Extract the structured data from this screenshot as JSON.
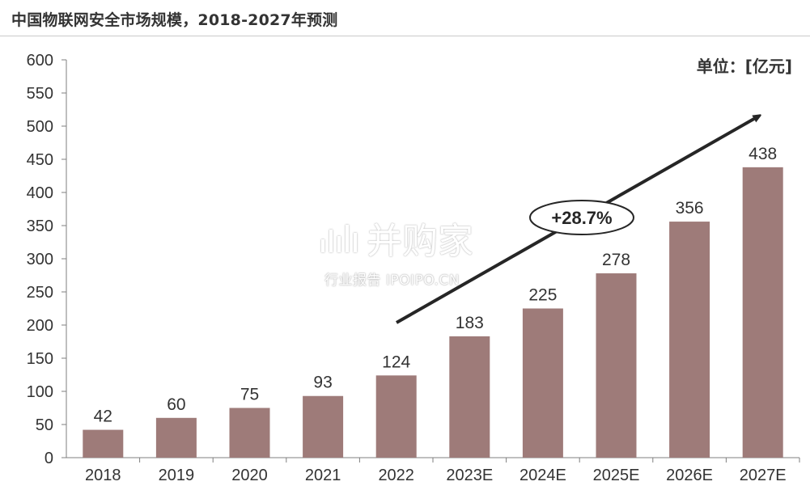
{
  "title": "中国物联网安全市场规模，2018-2027年预测",
  "unit_label": "单位：[亿元]",
  "watermark": {
    "main": "并购家",
    "sub": "行业报告 IPOIPO.CN"
  },
  "growth_label": "+28.7%",
  "colors": {
    "bar": "#9e7b79",
    "axis": "#7f7f7f",
    "text": "#333333",
    "arrow": "#262626"
  },
  "chart_data": {
    "type": "bar",
    "title": "中国物联网安全市场规模，2018-2027年预测",
    "xlabel": "",
    "ylabel": "",
    "categories": [
      "2018",
      "2019",
      "2020",
      "2021",
      "2022",
      "2023E",
      "2024E",
      "2025E",
      "2026E",
      "2027E"
    ],
    "values": [
      42,
      60,
      75,
      93,
      124,
      183,
      225,
      278,
      356,
      438
    ],
    "ylim": [
      0,
      600
    ],
    "yticks": [
      0,
      50,
      100,
      150,
      200,
      250,
      300,
      350,
      400,
      450,
      500,
      550,
      600
    ],
    "grid": false,
    "legend": "none",
    "annotations": [
      {
        "text": "+28.7%",
        "kind": "growth-arrow"
      }
    ]
  }
}
